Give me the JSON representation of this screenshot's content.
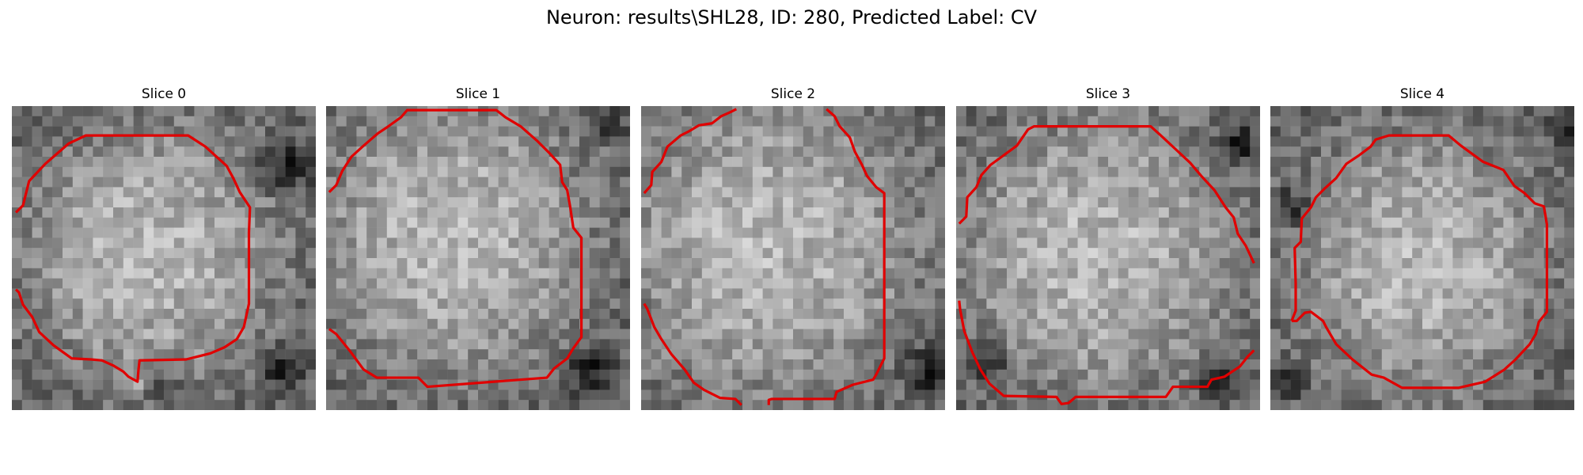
{
  "figure": {
    "title": "Neuron: results\\SHL28, ID: 280, Predicted Label: CV",
    "colormap": "gray",
    "contour_color": "#ff0000"
  },
  "slices": [
    {
      "label": "Slice 0"
    },
    {
      "label": "Slice 1"
    },
    {
      "label": "Slice 2"
    },
    {
      "label": "Slice 3"
    },
    {
      "label": "Slice 4"
    }
  ]
}
